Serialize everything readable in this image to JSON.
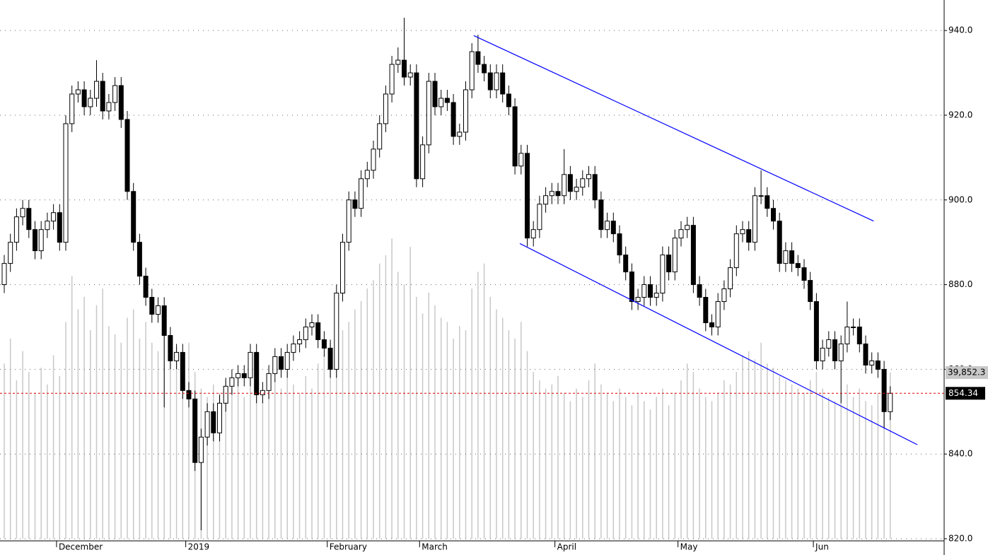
{
  "chart_data": {
    "type": "candlestick",
    "categories": [
      null,
      null,
      null,
      null,
      null,
      null,
      null,
      null,
      null,
      "December",
      null,
      null,
      null,
      null,
      null,
      null,
      null,
      null,
      null,
      null,
      null,
      null,
      null,
      null,
      null,
      null,
      null,
      null,
      null,
      null,
      "2019",
      null,
      null,
      null,
      null,
      null,
      null,
      null,
      null,
      null,
      null,
      null,
      null,
      null,
      null,
      null,
      null,
      null,
      null,
      null,
      null,
      null,
      null,
      "February",
      null,
      null,
      null,
      null,
      null,
      null,
      null,
      null,
      null,
      null,
      null,
      null,
      null,
      null,
      "March",
      null,
      null,
      null,
      null,
      null,
      null,
      null,
      null,
      null,
      null,
      null,
      null,
      null,
      null,
      null,
      null,
      null,
      null,
      null,
      null,
      null,
      "April",
      null,
      null,
      null,
      null,
      null,
      null,
      null,
      null,
      null,
      null,
      null,
      null,
      null,
      null,
      null,
      null,
      null,
      null,
      null,
      "May",
      null,
      null,
      null,
      null,
      null,
      null,
      null,
      null,
      null,
      null,
      null,
      null,
      null,
      null,
      null,
      null,
      null,
      null,
      null,
      null,
      null,
      "Jun",
      null,
      null,
      null,
      null,
      null,
      null,
      null,
      null,
      null,
      null,
      null,
      null
    ],
    "open": [
      880,
      885,
      890,
      896,
      898,
      893,
      888,
      893,
      895,
      897,
      890,
      918,
      925,
      926,
      922,
      924,
      928,
      921,
      923,
      927,
      919,
      902,
      890,
      882,
      877,
      873,
      875,
      868,
      862,
      864,
      855,
      853,
      838,
      844,
      850,
      845,
      852,
      856,
      858,
      859,
      858,
      864,
      854,
      855,
      859,
      863,
      860,
      864,
      866,
      867,
      870,
      871,
      867,
      865,
      860,
      878,
      890,
      900,
      898,
      905,
      907,
      912,
      918,
      925,
      932,
      933,
      929,
      930,
      905,
      913,
      928,
      922,
      924,
      923,
      915,
      916,
      926,
      935,
      932,
      930,
      926,
      930,
      925,
      922,
      908,
      911,
      891,
      893,
      899,
      901,
      902,
      901,
      906,
      902,
      903,
      905,
      906,
      900,
      893,
      895,
      892,
      887,
      883,
      876,
      877,
      880,
      877,
      878,
      887,
      883,
      891,
      893,
      894,
      880,
      877,
      871,
      870,
      876,
      879,
      884,
      892,
      893,
      890,
      901,
      901,
      898,
      895,
      885,
      888,
      885,
      884,
      881,
      876,
      862,
      865,
      867,
      862,
      866,
      870,
      870,
      866,
      861,
      862,
      860,
      850
    ],
    "high": [
      887,
      892,
      898,
      900,
      900,
      895,
      895,
      897,
      899,
      899,
      920,
      927,
      928,
      928,
      926,
      933,
      930,
      925,
      929,
      929,
      921,
      904,
      892,
      884,
      879,
      877,
      877,
      870,
      866,
      866,
      857,
      855,
      846,
      852,
      852,
      854,
      858,
      860,
      861,
      861,
      866,
      866,
      857,
      861,
      865,
      865,
      866,
      868,
      869,
      872,
      873,
      873,
      869,
      867,
      880,
      892,
      902,
      902,
      907,
      909,
      914,
      920,
      927,
      934,
      936,
      943,
      932,
      932,
      915,
      930,
      930,
      926,
      926,
      925,
      918,
      928,
      937,
      939,
      934,
      932,
      932,
      932,
      927,
      924,
      913,
      913,
      895,
      901,
      903,
      904,
      904,
      912,
      908,
      905,
      907,
      908,
      908,
      902,
      897,
      897,
      894,
      889,
      885,
      879,
      882,
      882,
      880,
      889,
      889,
      893,
      895,
      896,
      896,
      882,
      879,
      873,
      878,
      881,
      886,
      894,
      895,
      895,
      903,
      907,
      903,
      900,
      897,
      890,
      890,
      887,
      886,
      883,
      878,
      867,
      869,
      869,
      868,
      876,
      872,
      872,
      868,
      864,
      864,
      862,
      856
    ],
    "low": [
      878,
      883,
      888,
      894,
      891,
      886,
      886,
      891,
      893,
      888,
      888,
      916,
      923,
      920,
      920,
      922,
      919,
      919,
      921,
      917,
      900,
      888,
      880,
      875,
      871,
      871,
      851,
      860,
      860,
      853,
      851,
      836,
      822,
      842,
      843,
      843,
      850,
      854,
      856,
      856,
      856,
      852,
      852,
      853,
      857,
      858,
      858,
      862,
      864,
      865,
      868,
      865,
      863,
      858,
      858,
      876,
      888,
      896,
      896,
      903,
      905,
      910,
      916,
      923,
      930,
      927,
      927,
      903,
      903,
      911,
      920,
      920,
      921,
      913,
      913,
      914,
      924,
      930,
      928,
      924,
      924,
      923,
      920,
      906,
      906,
      889,
      889,
      891,
      897,
      899,
      899,
      899,
      900,
      900,
      901,
      903,
      898,
      891,
      891,
      890,
      885,
      881,
      874,
      874,
      875,
      875,
      875,
      876,
      881,
      881,
      889,
      891,
      878,
      875,
      869,
      868,
      868,
      874,
      877,
      882,
      890,
      888,
      888,
      899,
      896,
      893,
      883,
      883,
      883,
      882,
      879,
      874,
      860,
      860,
      863,
      860,
      852,
      864,
      868,
      864,
      859,
      859,
      858,
      846,
      848
    ],
    "close": [
      885,
      890,
      896,
      898,
      893,
      888,
      893,
      895,
      897,
      890,
      918,
      925,
      926,
      922,
      924,
      928,
      921,
      923,
      927,
      919,
      902,
      890,
      882,
      877,
      873,
      875,
      868,
      862,
      864,
      855,
      853,
      838,
      844,
      850,
      845,
      852,
      856,
      858,
      859,
      858,
      864,
      854,
      855,
      859,
      863,
      860,
      864,
      866,
      867,
      870,
      871,
      867,
      865,
      860,
      878,
      890,
      900,
      898,
      905,
      907,
      912,
      918,
      925,
      932,
      933,
      929,
      930,
      905,
      913,
      928,
      922,
      924,
      923,
      915,
      916,
      926,
      935,
      932,
      930,
      926,
      930,
      925,
      922,
      908,
      911,
      891,
      893,
      899,
      901,
      902,
      901,
      906,
      902,
      903,
      905,
      906,
      900,
      893,
      895,
      892,
      887,
      883,
      876,
      877,
      880,
      877,
      878,
      887,
      883,
      891,
      893,
      894,
      880,
      877,
      871,
      870,
      876,
      879,
      884,
      892,
      893,
      890,
      901,
      901,
      898,
      895,
      885,
      888,
      885,
      884,
      881,
      876,
      862,
      865,
      867,
      862,
      866,
      870,
      870,
      866,
      861,
      862,
      860,
      850,
      854.34
    ],
    "up_color": "#ffffff",
    "down_color": "#000000",
    "ylim": [
      820,
      947.2
    ],
    "yticks": [
      {
        "value": 820,
        "label": "820.0"
      },
      {
        "value": 840,
        "label": "840.0"
      },
      {
        "value": 860,
        "label": "860.0"
      },
      {
        "value": 880,
        "label": "880.0"
      },
      {
        "value": 900,
        "label": "900.0"
      },
      {
        "value": 920,
        "label": "920.0"
      },
      {
        "value": 940,
        "label": "940.0"
      }
    ],
    "grid": true,
    "volume": {
      "color": "#c8c8c8",
      "ylim": [
        0,
        129200
      ],
      "last_label": "39,852.3",
      "values": [
        42000,
        48000,
        38000,
        45000,
        40000,
        35000,
        41000,
        37000,
        44000,
        39000,
        52000,
        63000,
        55000,
        58000,
        50000,
        56000,
        60000,
        51000,
        49000,
        47000,
        53000,
        55000,
        48000,
        52000,
        47000,
        45000,
        50000,
        44000,
        46000,
        43000,
        47000,
        40000,
        36000,
        34000,
        37000,
        35000,
        38000,
        36000,
        39000,
        34000,
        41000,
        37000,
        33000,
        35000,
        38000,
        36000,
        40000,
        37000,
        35000,
        39000,
        36000,
        42000,
        44000,
        47000,
        48000,
        50000,
        52000,
        55000,
        57000,
        60000,
        62000,
        66000,
        68000,
        72000,
        64000,
        61000,
        70000,
        58000,
        54000,
        59000,
        56000,
        53000,
        52000,
        48000,
        51000,
        50000,
        60000,
        64000,
        66000,
        58000,
        55000,
        53000,
        50000,
        48000,
        52000,
        45000,
        40000,
        38000,
        36000,
        37000,
        39000,
        35000,
        33000,
        36000,
        34000,
        38000,
        42000,
        37000,
        35000,
        33000,
        36000,
        34000,
        32000,
        35000,
        33000,
        31000,
        34000,
        36000,
        32000,
        35000,
        38000,
        42000,
        40000,
        36000,
        34000,
        33000,
        35000,
        38000,
        37000,
        40000,
        44000,
        45000,
        43000,
        47000,
        42000,
        41000,
        39000,
        38000,
        37000,
        36000,
        35000,
        38000,
        40000,
        36000,
        34000,
        33000,
        35000,
        37000,
        34000,
        36000,
        33000,
        32000,
        35000,
        34000,
        39852.3
      ]
    },
    "last_price_color": "#e00000",
    "trendlines": [
      {
        "color": "#0000ff",
        "x": [
          76.3,
          141.3
        ],
        "y": [
          938.8,
          895
        ]
      },
      {
        "color": "#0000ff",
        "x": [
          83.8,
          148.4
        ],
        "y": [
          889.7,
          842.2
        ]
      }
    ]
  }
}
